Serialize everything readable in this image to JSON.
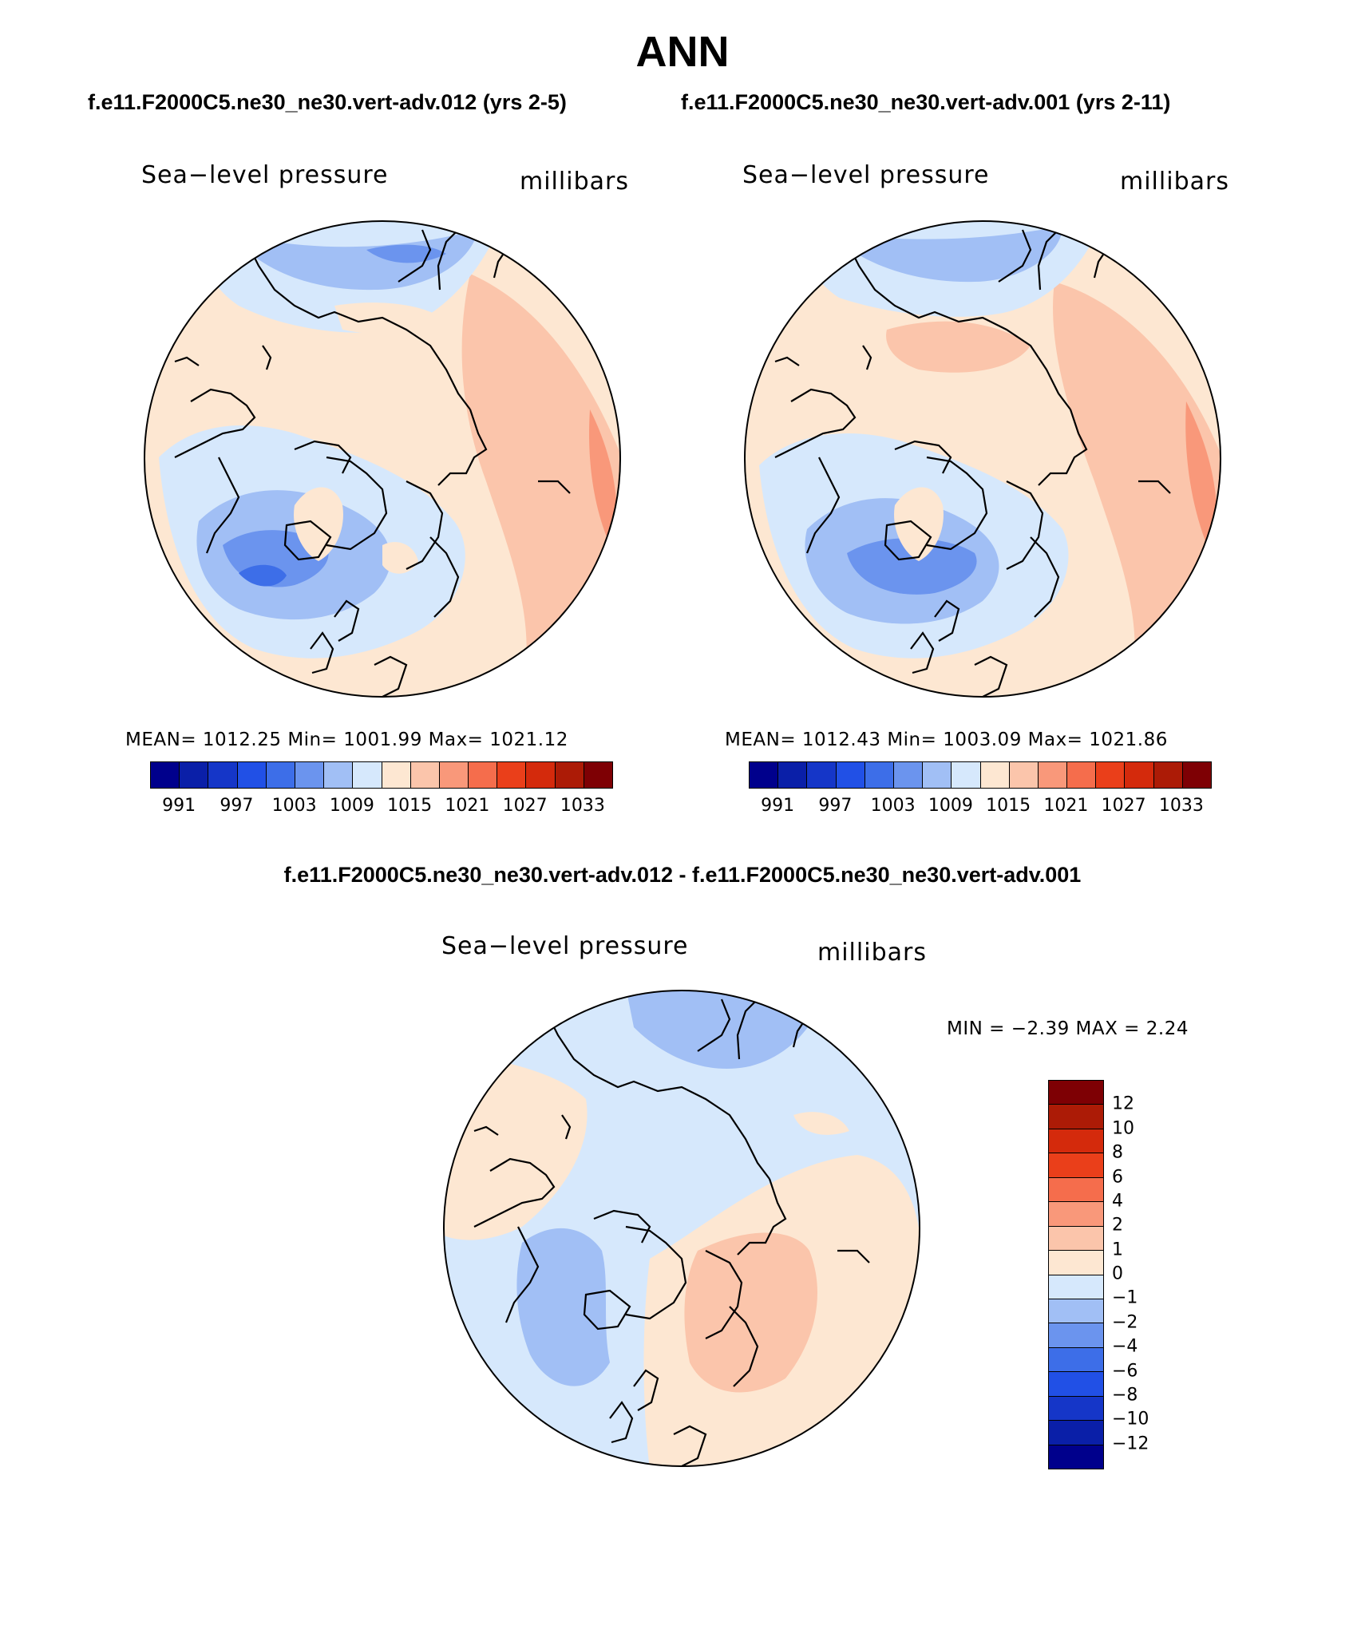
{
  "title": "ANN",
  "case1_title": "f.e11.F2000C5.ne30_ne30.vert-adv.012 (yrs 2-5)",
  "case2_title": "f.e11.F2000C5.ne30_ne30.vert-adv.001 (yrs 2-11)",
  "diff_title": "f.e11.F2000C5.ne30_ne30.vert-adv.012 - f.e11.F2000C5.ne30_ne30.vert-adv.001",
  "variable_label": "Sea−level pressure",
  "units_label": "millibars",
  "panel1": {
    "stats": "MEAN= 1012.25   Min= 1001.99   Max= 1021.12",
    "mean": 1012.25,
    "min": 1001.99,
    "max": 1021.12
  },
  "panel2": {
    "stats": "MEAN= 1012.43   Min= 1003.09   Max= 1021.86",
    "mean": 1012.43,
    "min": 1003.09,
    "max": 1021.86
  },
  "diff_panel": {
    "stats": "MIN =  −2.39 MAX =    2.24",
    "min": -2.39,
    "max": 2.24
  },
  "abs_colorbar": {
    "colors": [
      "#00008c",
      "#0a1fa8",
      "#1536c8",
      "#2150e6",
      "#3d6ee8",
      "#6b94ee",
      "#a1bff5",
      "#d6e8fc",
      "#fde7d2",
      "#fbc5ab",
      "#f9987a",
      "#f56d4c",
      "#ea3f1a",
      "#d42a0c",
      "#ac1b06",
      "#7e0004"
    ],
    "tick_labels": [
      "991",
      "997",
      "1003",
      "1009",
      "1015",
      "1021",
      "1027",
      "1033"
    ]
  },
  "diff_colorbar": {
    "colors_top_to_bottom": [
      "#7e0004",
      "#ac1b06",
      "#d42a0c",
      "#ea3f1a",
      "#f56d4c",
      "#f9987a",
      "#fbc5ab",
      "#fde7d2",
      "#d6e8fc",
      "#a1bff5",
      "#6b94ee",
      "#3d6ee8",
      "#2150e6",
      "#1536c8",
      "#0a1fa8",
      "#00008c"
    ],
    "tick_labels": [
      "12",
      "10",
      "8",
      "6",
      "4",
      "2",
      "1",
      "0",
      "−1",
      "−2",
      "−4",
      "−6",
      "−8",
      "−10",
      "−12"
    ]
  }
}
